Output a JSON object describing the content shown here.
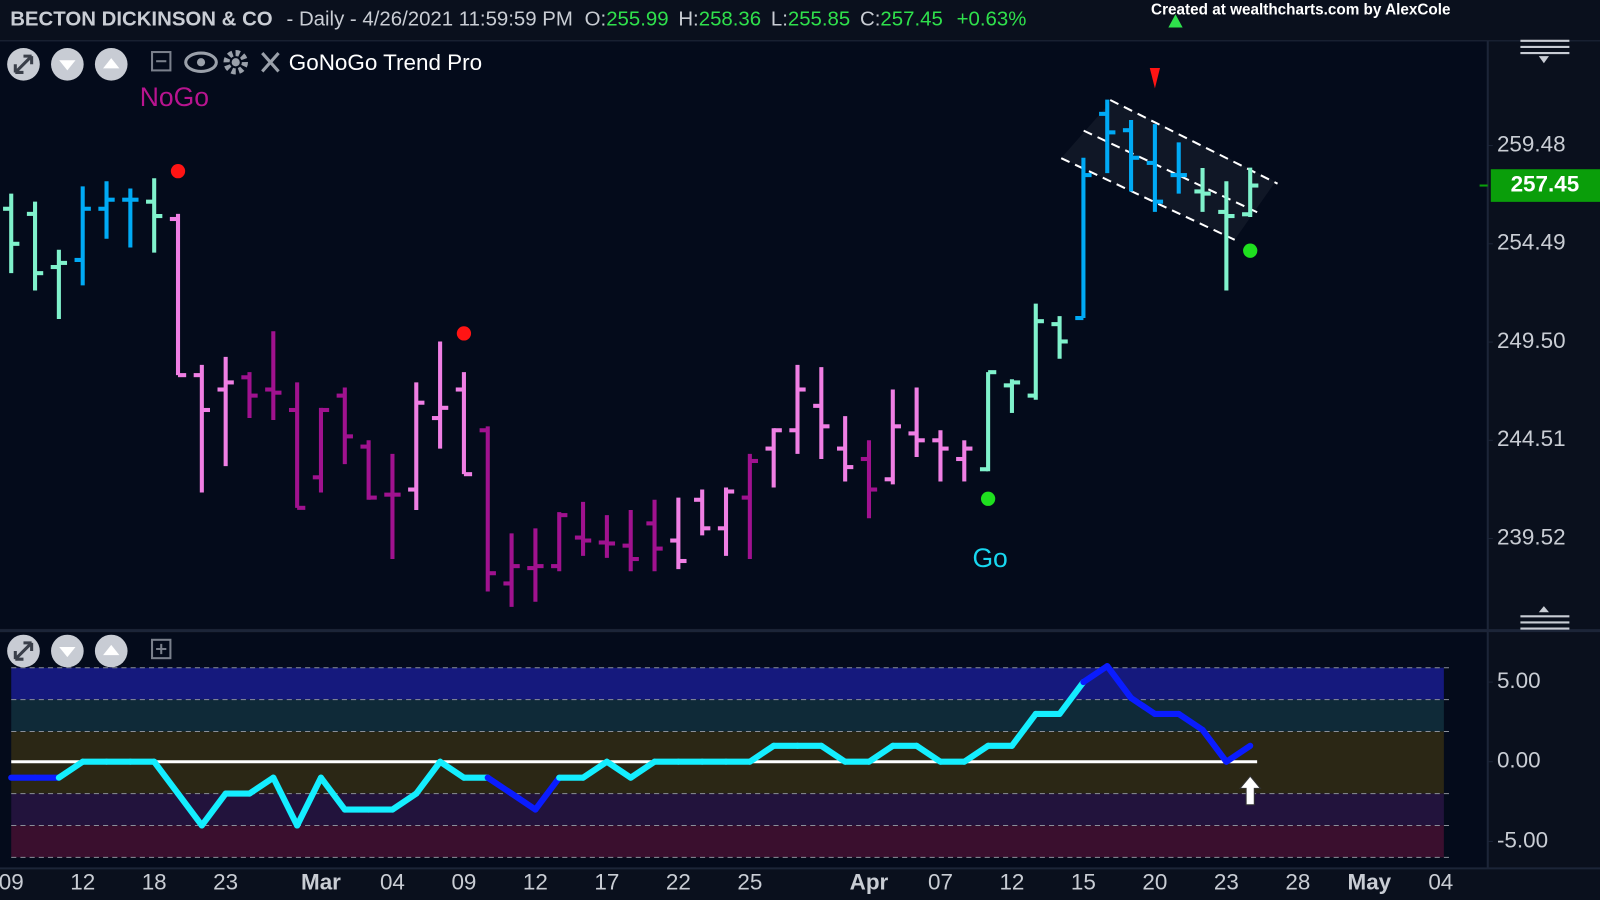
{
  "header": {
    "symbol": "BECTON DICKINSON & CO",
    "period": "- Daily - 4/26/2021 11:59:59 PM",
    "ohlc": [
      {
        "label": "O:",
        "value": "255.99"
      },
      {
        "label": "H:",
        "value": "258.36"
      },
      {
        "label": "L:",
        "value": "255.85"
      },
      {
        "label": "C:",
        "value": "257.45"
      }
    ],
    "change": "+0.63%",
    "credit": "Created at wealthcharts.com by AlexCole"
  },
  "chart_data": [
    {
      "type": "ohlc",
      "indicator": "GoNoGo Trend Pro",
      "labels": {
        "nogo": "NoGo",
        "go": "Go"
      },
      "categories": [
        "09",
        null,
        null,
        "12",
        null,
        null,
        "18",
        null,
        null,
        "23",
        null,
        null,
        null,
        "Mar",
        null,
        null,
        "04",
        null,
        null,
        "09",
        null,
        null,
        "12",
        null,
        null,
        "17",
        null,
        null,
        "22",
        null,
        null,
        "25",
        null,
        null,
        null,
        null,
        "Apr",
        null,
        null,
        "07",
        null,
        null,
        "12",
        null,
        null,
        "15",
        null,
        null,
        "20",
        null,
        null,
        "23",
        null,
        null,
        "28",
        null,
        null,
        "May",
        null,
        null,
        "04",
        null
      ],
      "open": [
        256.27,
        256.01,
        253.31,
        253.67,
        256.27,
        256.73,
        256.63,
        255.75,
        247.82,
        247.09,
        247.71,
        247.09,
        246.05,
        242.63,
        246.78,
        244.19,
        241.75,
        242.01,
        245.64,
        247.09,
        245.02,
        237.24,
        238.02,
        238.12,
        239.57,
        239.32,
        239.16,
        240.29,
        239.42,
        241.49,
        240.04,
        241.6,
        244.09,
        245.02,
        246.26,
        244.09,
        243.56,
        242.53,
        244.86,
        244.51,
        243.56,
        243.04,
        247.3,
        246.78,
        250.41,
        250.72,
        261.09,
        260.26,
        258.6,
        257.98,
        257.15,
        256.11,
        255.99,
        null,
        null,
        null,
        null,
        null,
        null,
        null,
        null,
        null
      ],
      "high": [
        257.04,
        256.63,
        254.19,
        257.41,
        257.67,
        257.3,
        257.82,
        256.01,
        248.34,
        248.75,
        247.97,
        250.05,
        247.45,
        246.16,
        247.19,
        244.51,
        243.82,
        247.45,
        249.53,
        247.97,
        245.22,
        239.78,
        240.04,
        240.86,
        241.38,
        240.71,
        240.97,
        241.49,
        241.6,
        242.01,
        242.11,
        243.82,
        245.12,
        248.34,
        248.23,
        245.74,
        244.51,
        247.09,
        247.19,
        245.02,
        244.51,
        247.97,
        247.61,
        251.45,
        250.82,
        258.86,
        261.81,
        260.78,
        260.57,
        259.64,
        258.34,
        257.67,
        258.36,
        null,
        null,
        null,
        null,
        null,
        null,
        null,
        null,
        null
      ],
      "low": [
        253.0,
        252.12,
        250.67,
        252.38,
        254.75,
        254.3,
        254.04,
        247.82,
        241.86,
        243.2,
        245.64,
        245.54,
        241.08,
        241.86,
        243.3,
        241.49,
        238.48,
        240.97,
        244.09,
        242.79,
        236.83,
        236.05,
        236.31,
        237.86,
        238.64,
        238.54,
        237.86,
        237.86,
        237.97,
        239.68,
        238.64,
        238.48,
        242.11,
        243.82,
        243.56,
        242.42,
        240.55,
        242.27,
        243.66,
        242.42,
        242.42,
        242.94,
        245.9,
        246.57,
        248.65,
        250.72,
        258.08,
        257.15,
        256.11,
        257.04,
        256.11,
        252.12,
        255.85,
        null,
        null,
        null,
        null,
        null,
        null,
        null,
        null,
        null
      ],
      "close": [
        254.49,
        253.0,
        253.52,
        256.27,
        256.73,
        256.73,
        255.9,
        247.82,
        246.05,
        247.45,
        246.78,
        246.93,
        241.08,
        246.05,
        244.71,
        241.6,
        241.75,
        246.42,
        246.16,
        242.79,
        237.76,
        238.12,
        238.12,
        240.71,
        239.42,
        239.27,
        238.48,
        239.01,
        238.38,
        240.04,
        241.91,
        243.46,
        245.02,
        247.09,
        245.22,
        243.15,
        242.01,
        245.22,
        244.51,
        244.09,
        244.09,
        247.97,
        247.45,
        250.56,
        249.53,
        257.98,
        260.15,
        258.86,
        256.63,
        257.98,
        257.04,
        255.9,
        257.45,
        null,
        null,
        null,
        null,
        null,
        null,
        null,
        null,
        null
      ],
      "bar_colors": [
        "#80f2cc",
        "#80f2cc",
        "#80f2cc",
        "#00aaf5",
        "#00aaf5",
        "#00aaf5",
        "#80f2cc",
        "#f07fe4",
        "#f07fe4",
        "#f07fe4",
        "#a0128f",
        "#a0128f",
        "#a0128f",
        "#a0128f",
        "#a0128f",
        "#a0128f",
        "#a0128f",
        "#f07fe4",
        "#f07fe4",
        "#f07fe4",
        "#a0128f",
        "#a0128f",
        "#a0128f",
        "#a0128f",
        "#a0128f",
        "#a0128f",
        "#a0128f",
        "#a0128f",
        "#f07fe4",
        "#f07fe4",
        "#f07fe4",
        "#a0128f",
        "#f07fe4",
        "#f07fe4",
        "#f07fe4",
        "#f07fe4",
        "#a0128f",
        "#f07fe4",
        "#f07fe4",
        "#f07fe4",
        "#f07fe4",
        "#80f2cc",
        "#80f2cc",
        "#80f2cc",
        "#80f2cc",
        "#00aaf5",
        "#00aaf5",
        "#00aaf5",
        "#00aaf5",
        "#00aaf5",
        "#80f2cc",
        "#80f2cc",
        "#80f2cc",
        null,
        null,
        null,
        null,
        null,
        null,
        null,
        null,
        null
      ],
      "signals": [
        {
          "index": 7,
          "value": 258.18,
          "shape": "dot",
          "color": "#ff1414"
        },
        {
          "index": 19,
          "value": 249.94,
          "shape": "dot",
          "color": "#ff1414"
        },
        {
          "index": 41,
          "value": 241.54,
          "shape": "dot",
          "color": "#1fe01f"
        },
        {
          "index": 52,
          "value": 254.14,
          "shape": "dot",
          "color": "#1fe01f"
        },
        {
          "index": 48,
          "value": 262.9,
          "shape": "triangle-down",
          "color": "#ff1414"
        }
      ],
      "last_price": 257.45,
      "last_price_color": "#0a9e0a",
      "ylim": [
        235.0,
        264.8
      ],
      "yticks": [
        259.48,
        254.49,
        {
          "value": 249.5,
          "label": "249.50"
        },
        244.51,
        239.52
      ],
      "grid": false
    },
    {
      "type": "line",
      "values": [
        -1,
        -1,
        -1,
        0,
        0,
        0,
        0,
        -2,
        -4,
        -2,
        -2,
        -1,
        -4,
        -1,
        -3,
        -3,
        -3,
        -2,
        0,
        -1,
        -1,
        -2,
        -3,
        -1,
        -1,
        0,
        -1,
        0,
        0,
        0,
        0,
        0,
        1,
        1,
        1,
        0,
        0,
        1,
        1,
        0,
        0,
        1,
        1,
        3,
        3,
        5,
        6,
        4,
        3,
        3,
        2,
        0,
        1,
        null,
        null,
        null,
        null,
        null,
        null,
        null,
        null,
        null
      ],
      "point_colors": [
        "#0a1cff",
        "#0a1cff",
        "#0a1cff",
        "#14eeff",
        "#14eeff",
        "#14eeff",
        "#14eeff",
        "#14eeff",
        "#14eeff",
        "#14eeff",
        "#14eeff",
        "#14eeff",
        "#14eeff",
        "#14eeff",
        "#14eeff",
        "#14eeff",
        "#14eeff",
        "#14eeff",
        "#14eeff",
        "#14eeff",
        "#14eeff",
        "#0a1cff",
        "#0a1cff",
        "#0a1cff",
        "#14eeff",
        "#14eeff",
        "#14eeff",
        "#14eeff",
        "#14eeff",
        "#14eeff",
        "#14eeff",
        "#14eeff",
        "#14eeff",
        "#14eeff",
        "#14eeff",
        "#14eeff",
        "#14eeff",
        "#14eeff",
        "#14eeff",
        "#14eeff",
        "#14eeff",
        "#14eeff",
        "#14eeff",
        "#14eeff",
        "#14eeff",
        "#14eeff",
        "#0a1cff",
        "#0a1cff",
        "#0a1cff",
        "#0a1cff",
        "#0a1cff",
        "#0a1cff",
        "#0a1cff",
        null,
        null,
        null,
        null,
        null,
        null,
        null,
        null,
        null
      ],
      "baseline": 0,
      "band_edges": [
        5.9,
        3.9,
        1.9,
        -2.0,
        -4.0,
        -6.0
      ],
      "band_colors": [
        "#15197d",
        "#0f2a38",
        "#2b2715",
        "#22133c",
        "#3a0f2e"
      ],
      "signals": [
        {
          "index": 52,
          "value": -1.8,
          "shape": "arrow-up",
          "color": "#ffffff"
        }
      ],
      "ylim": [
        -6.5,
        6.5
      ],
      "yticks": [
        {
          "value": 5,
          "label": "5.00"
        },
        {
          "value": 0,
          "label": "0.00"
        },
        {
          "value": -5,
          "label": "-5.00"
        }
      ]
    }
  ]
}
